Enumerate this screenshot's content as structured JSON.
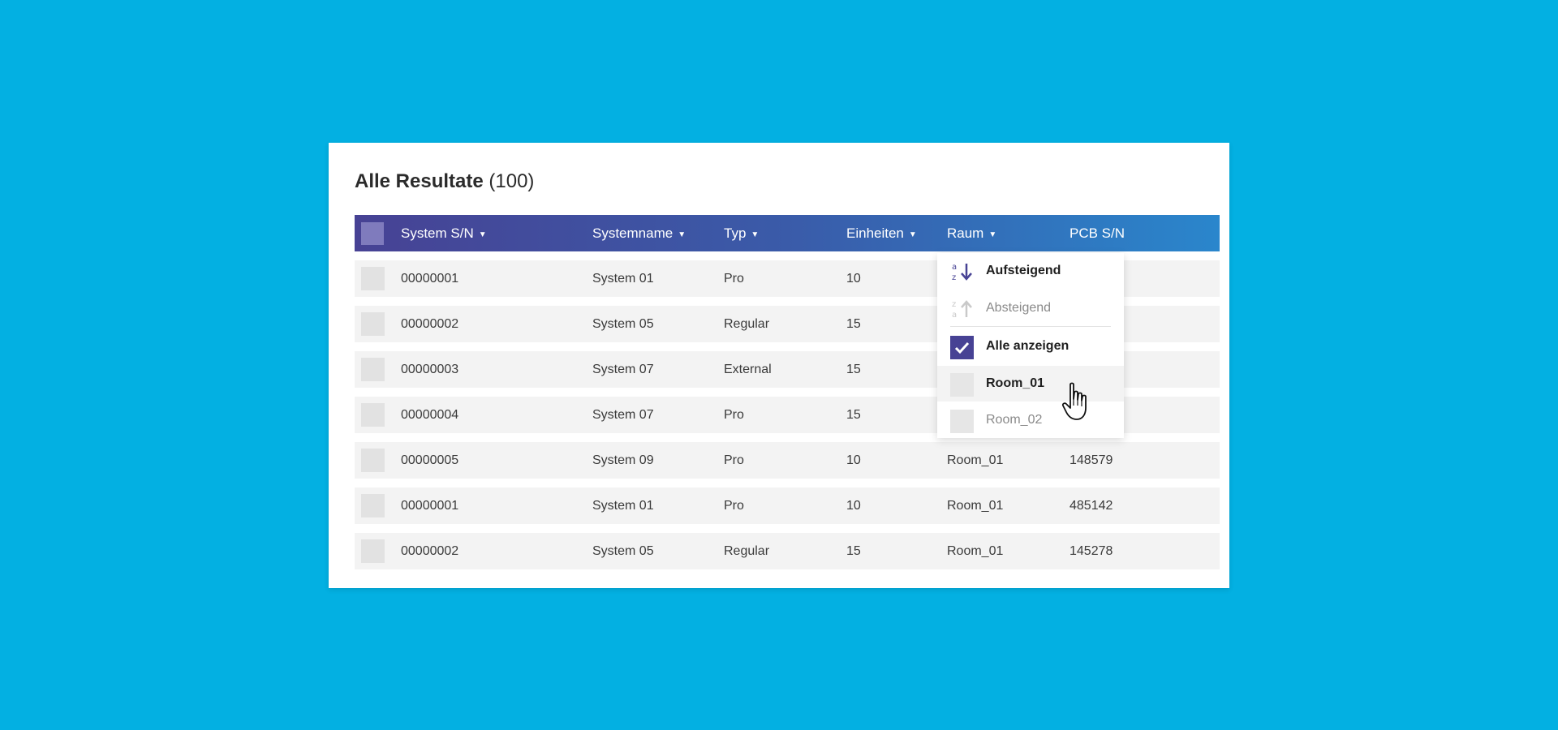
{
  "header": {
    "title": "Alle Resultate",
    "count": "(100)"
  },
  "table": {
    "columns": [
      "System S/N",
      "Systemname",
      "Typ",
      "Einheiten",
      "Raum",
      "PCB S/N"
    ],
    "rows": [
      {
        "sn": "00000001",
        "name": "System 01",
        "typ": "Pro",
        "einheiten": "10",
        "raum": "",
        "pcb": ""
      },
      {
        "sn": "00000002",
        "name": "System 05",
        "typ": "Regular",
        "einheiten": "15",
        "raum": "",
        "pcb": ""
      },
      {
        "sn": "00000003",
        "name": "System 07",
        "typ": "External",
        "einheiten": "15",
        "raum": "",
        "pcb": ""
      },
      {
        "sn": "00000004",
        "name": "System 07",
        "typ": "Pro",
        "einheiten": "15",
        "raum": "",
        "pcb": ""
      },
      {
        "sn": "00000005",
        "name": "System 09",
        "typ": "Pro",
        "einheiten": "10",
        "raum": "Room_01",
        "pcb": "148579"
      },
      {
        "sn": "00000001",
        "name": "System 01",
        "typ": "Pro",
        "einheiten": "10",
        "raum": "Room_01",
        "pcb": "485142"
      },
      {
        "sn": "00000002",
        "name": "System 05",
        "typ": "Regular",
        "einheiten": "15",
        "raum": "Room_01",
        "pcb": "145278"
      }
    ]
  },
  "dropdown": {
    "sort_asc": "Aufsteigend",
    "sort_desc": "Absteigend",
    "show_all": "Alle anzeigen",
    "options": [
      "Room_01",
      "Room_02"
    ],
    "show_all_checked": true
  },
  "colors": {
    "background": "#03b0e2",
    "header_start": "#474294",
    "header_end": "#2a86cc",
    "accent": "#474294"
  }
}
